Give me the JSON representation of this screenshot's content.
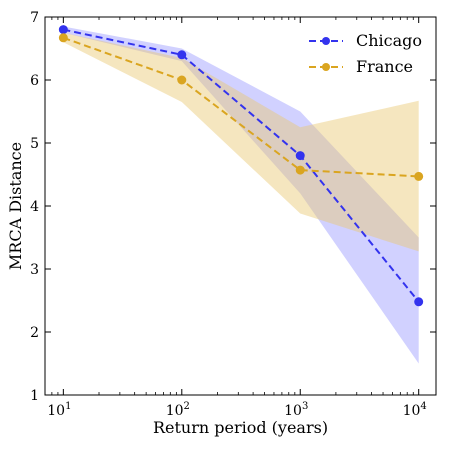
{
  "chart_data": {
    "type": "line",
    "title": "",
    "xlabel": "Return period (years)",
    "ylabel": "MRCA Distance",
    "x": [
      10,
      100,
      1000,
      10000
    ],
    "x_scale": "log",
    "x_tick_labels": [
      {
        "value": 10,
        "base": "10",
        "exp": "1"
      },
      {
        "value": 100,
        "base": "10",
        "exp": "2"
      },
      {
        "value": 1000,
        "base": "10",
        "exp": "3"
      },
      {
        "value": 10000,
        "base": "10",
        "exp": "4"
      }
    ],
    "xlim": [
      7,
      14000
    ],
    "ylim": [
      1,
      7
    ],
    "y_ticks": [
      "1",
      "2",
      "3",
      "4",
      "5",
      "6",
      "7"
    ],
    "grid": false,
    "legend_position": "top-right",
    "series": [
      {
        "name": "Chicago",
        "color": "#3333ee",
        "band_color": "#9999ff",
        "marker": "circle",
        "line_style": "dashed",
        "values": [
          6.8,
          6.4,
          4.8,
          2.48
        ],
        "lower": [
          6.75,
          6.3,
          4.2,
          1.5
        ],
        "upper": [
          6.85,
          6.5,
          5.5,
          3.5
        ]
      },
      {
        "name": "France",
        "color": "#daa520",
        "band_color": "#e8c872",
        "marker": "circle",
        "line_style": "dashed",
        "values": [
          6.67,
          6.0,
          4.57,
          4.47
        ],
        "lower": [
          6.6,
          5.65,
          3.88,
          3.28
        ],
        "upper": [
          6.75,
          6.35,
          5.25,
          5.67
        ]
      }
    ]
  }
}
